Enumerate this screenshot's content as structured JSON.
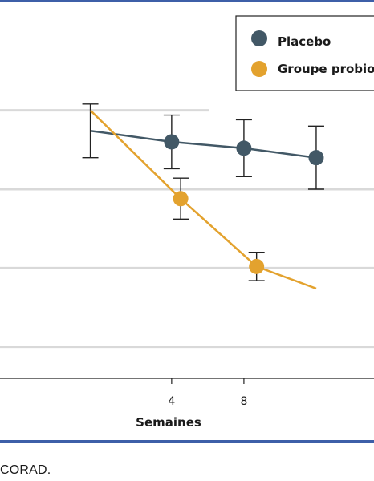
{
  "chart_data": {
    "type": "line",
    "xlabel": "Semaines",
    "x_ticks": [
      "4",
      "8"
    ],
    "y_grid": [
      -5,
      -10,
      -15,
      -20
    ],
    "ylim": [
      -22,
      2
    ],
    "xlim": [
      -5.5,
      15.2
    ],
    "grid": true,
    "legend_position": "top-right",
    "series": [
      {
        "name": "Placebo",
        "color": "#425866",
        "points": [
          {
            "x": -0.5,
            "y": -6.3,
            "err": 1.7
          },
          {
            "x": 4.0,
            "y": -7.0,
            "err": 1.7
          },
          {
            "x": 8.0,
            "y": -7.4,
            "err": 1.8
          },
          {
            "x": 12.0,
            "y": -8.0,
            "err": 2.0
          }
        ]
      },
      {
        "name": "Groupe probio",
        "color": "#e3a22e",
        "points": [
          {
            "x": -0.5,
            "y": -5.0,
            "err": 0
          },
          {
            "x": 4.5,
            "y": -10.6,
            "err": 1.3
          },
          {
            "x": 8.7,
            "y": -14.9,
            "err": 0.9
          },
          {
            "x": 12.0,
            "y": -16.3,
            "err": 0
          }
        ]
      }
    ]
  },
  "caption": "CORAD."
}
